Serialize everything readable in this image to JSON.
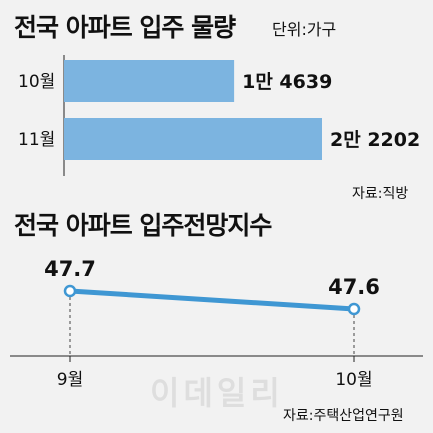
{
  "charts": {
    "bar": {
      "title": "전국 아파트 입주 물량",
      "unit": "단위:가구",
      "source": "자료:직방"
    },
    "line": {
      "title": "전국 아파트 입주전망지수",
      "source": "자료:주택산업연구원"
    }
  },
  "watermark": "이데일리",
  "colors": {
    "bar_fill": "#7cb4e0",
    "line_stroke": "#3f97d3",
    "marker_fill": "#ffffff",
    "background": "#f2f2f2"
  },
  "chart_data": [
    {
      "type": "bar",
      "orientation": "horizontal",
      "title": "전국 아파트 입주 물량",
      "unit": "가구",
      "categories": [
        "10월",
        "11월"
      ],
      "values": [
        14639,
        22202
      ],
      "value_labels": [
        "1만 4639",
        "2만 2202"
      ]
    },
    {
      "type": "line",
      "title": "전국 아파트 입주전망지수",
      "categories": [
        "9월",
        "10월"
      ],
      "values": [
        47.7,
        47.6
      ],
      "value_labels": [
        "47.7",
        "47.6"
      ]
    }
  ]
}
